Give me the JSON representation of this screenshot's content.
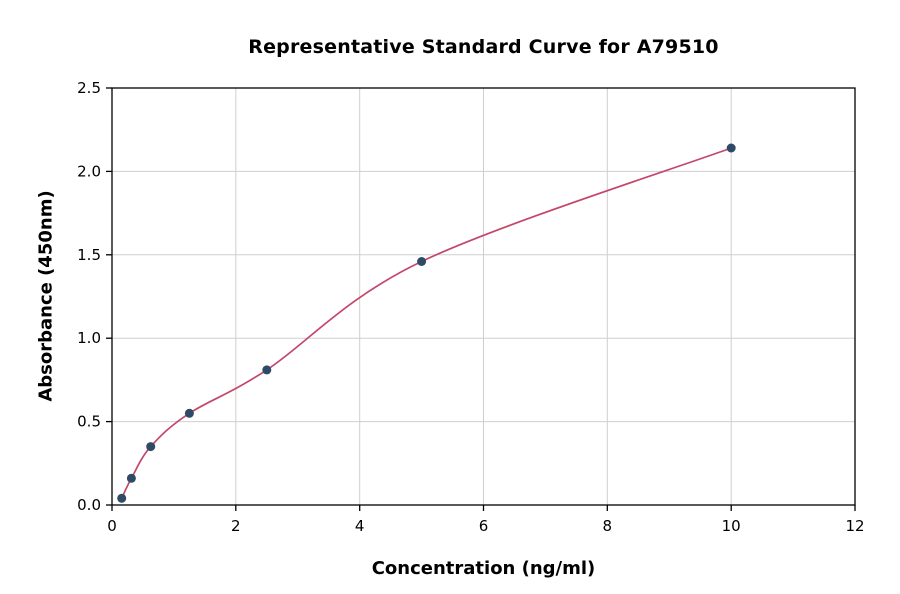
{
  "chart_data": {
    "type": "scatter",
    "title": "Representative Standard Curve for A79510",
    "xlabel": "Concentration (ng/ml)",
    "ylabel": "Absorbance (450nm)",
    "xlim": [
      0,
      12
    ],
    "ylim": [
      0,
      2.5
    ],
    "x_ticks": [
      0,
      2,
      4,
      6,
      8,
      10,
      12
    ],
    "y_ticks": [
      0,
      0.5,
      1.0,
      1.5,
      2.0,
      2.5
    ],
    "grid": true,
    "legend": "none",
    "points": [
      {
        "x": 0.156,
        "y": 0.04
      },
      {
        "x": 0.313,
        "y": 0.16
      },
      {
        "x": 0.625,
        "y": 0.35
      },
      {
        "x": 1.25,
        "y": 0.55
      },
      {
        "x": 2.5,
        "y": 0.81
      },
      {
        "x": 5,
        "y": 1.46
      },
      {
        "x": 10,
        "y": 2.14
      }
    ],
    "fit": "smooth saturation curve through the standard points",
    "colors": {
      "point": "#2E4A66",
      "curve": "#C4476B",
      "grid": "#CFCFCF",
      "axis": "#000000",
      "background": "#FFFFFF"
    }
  }
}
